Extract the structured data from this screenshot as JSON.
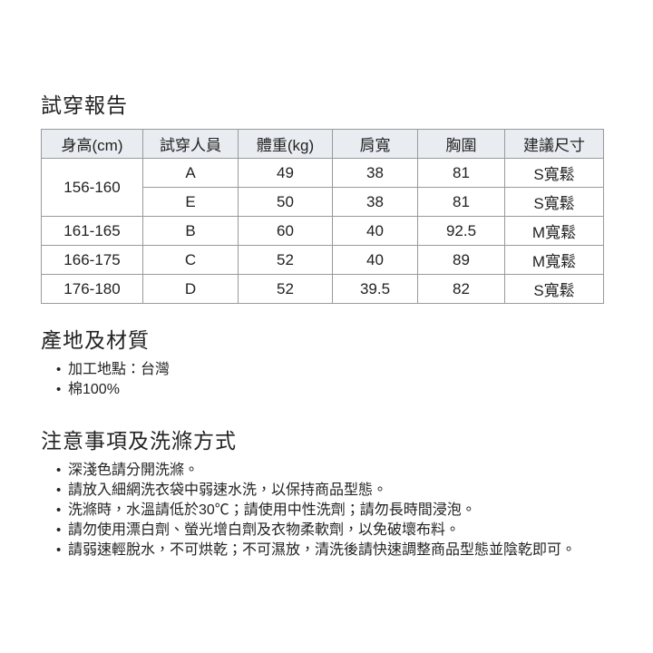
{
  "fitting_report": {
    "title": "試穿報告",
    "table": {
      "headers": [
        "身高(cm)",
        "試穿人員",
        "體重(kg)",
        "肩寬",
        "胸圍",
        "建議尺寸"
      ],
      "rows": [
        {
          "height": "156-160",
          "rowspan": 2,
          "cells": [
            "A",
            "49",
            "38",
            "81",
            "S寬鬆"
          ]
        },
        {
          "cells": [
            "E",
            "50",
            "38",
            "81",
            "S寬鬆"
          ]
        },
        {
          "height": "161-165",
          "rowspan": 1,
          "cells": [
            "B",
            "60",
            "40",
            "92.5",
            "M寬鬆"
          ]
        },
        {
          "height": "166-175",
          "rowspan": 1,
          "cells": [
            "C",
            "52",
            "40",
            "89",
            "M寬鬆"
          ]
        },
        {
          "height": "176-180",
          "rowspan": 1,
          "cells": [
            "D",
            "52",
            "39.5",
            "82",
            "S寬鬆"
          ]
        }
      ]
    }
  },
  "material": {
    "title": "產地及材質",
    "items": [
      "加工地點：台灣",
      "棉100%"
    ]
  },
  "care": {
    "title": "注意事項及洗滌方式",
    "items": [
      "深淺色請分開洗滌。",
      "請放入細網洗衣袋中弱速水洗，以保持商品型態。",
      "洗滌時，水溫請低於30℃；請使用中性洗劑；請勿長時間浸泡。",
      "請勿使用漂白劑、螢光增白劑及衣物柔軟劑，以免破壞布料。",
      "請弱速輕脫水，不可烘乾；不可濕放，清洗後請快速調整商品型態並陰乾即可。"
    ]
  },
  "colors": {
    "text": "#222222",
    "border": "#999999",
    "header_bg": "#e9edf2"
  }
}
